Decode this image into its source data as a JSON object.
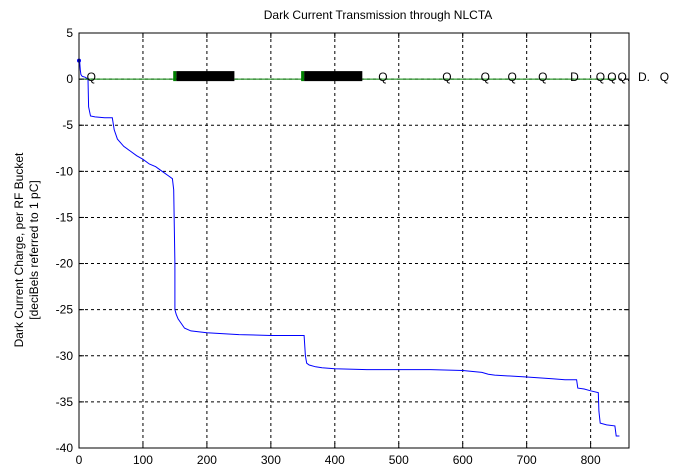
{
  "chart_data": {
    "type": "line",
    "title": "Dark Current Transmission through NLCTA",
    "xlabel": "",
    "ylabel_line1": "Dark Current Charge, per RF Bucket",
    "ylabel_line2": "[deciBels referred to 1 pC]",
    "xlim": [
      0,
      860
    ],
    "ylim": [
      -40,
      5
    ],
    "xticks": [
      0,
      100,
      200,
      300,
      400,
      500,
      600,
      700,
      800
    ],
    "yticks": [
      5,
      0,
      -5,
      -10,
      -15,
      -20,
      -25,
      -30,
      -35,
      -40
    ],
    "grid": true,
    "series": [
      {
        "color": "#0000ff",
        "points": [
          [
            0,
            2
          ],
          [
            1,
            2
          ],
          [
            2,
            1
          ],
          [
            3,
            0.5
          ],
          [
            5,
            0.3
          ],
          [
            10,
            0.2
          ],
          [
            14,
            0
          ],
          [
            15,
            -3
          ],
          [
            18,
            -4
          ],
          [
            25,
            -4.1
          ],
          [
            40,
            -4.2
          ],
          [
            52,
            -4.2
          ],
          [
            55,
            -5.5
          ],
          [
            60,
            -6.5
          ],
          [
            70,
            -7.3
          ],
          [
            80,
            -7.8
          ],
          [
            90,
            -8.3
          ],
          [
            100,
            -8.7
          ],
          [
            110,
            -9.2
          ],
          [
            120,
            -9.5
          ],
          [
            130,
            -10
          ],
          [
            140,
            -10.5
          ],
          [
            146,
            -10.8
          ],
          [
            148,
            -12
          ],
          [
            149,
            -16
          ],
          [
            150,
            -20
          ],
          [
            150,
            -25
          ],
          [
            152,
            -25.5
          ],
          [
            155,
            -26
          ],
          [
            160,
            -26.5
          ],
          [
            165,
            -27
          ],
          [
            175,
            -27.3
          ],
          [
            200,
            -27.5
          ],
          [
            250,
            -27.7
          ],
          [
            300,
            -27.8
          ],
          [
            352,
            -27.8
          ],
          [
            354,
            -30
          ],
          [
            356,
            -30.8
          ],
          [
            360,
            -31
          ],
          [
            370,
            -31.2
          ],
          [
            380,
            -31.3
          ],
          [
            400,
            -31.4
          ],
          [
            450,
            -31.5
          ],
          [
            500,
            -31.5
          ],
          [
            550,
            -31.5
          ],
          [
            600,
            -31.6
          ],
          [
            630,
            -31.8
          ],
          [
            640,
            -32
          ],
          [
            650,
            -32.1
          ],
          [
            700,
            -32.3
          ],
          [
            740,
            -32.5
          ],
          [
            760,
            -32.6
          ],
          [
            778,
            -32.6
          ],
          [
            780,
            -33.5
          ],
          [
            790,
            -33.6
          ],
          [
            800,
            -33.8
          ],
          [
            812,
            -34
          ],
          [
            813,
            -36
          ],
          [
            815,
            -37.3
          ],
          [
            825,
            -37.5
          ],
          [
            838,
            -37.6
          ],
          [
            840,
            -38.7
          ],
          [
            845,
            -38.7
          ]
        ]
      },
      {
        "color": "#008000",
        "points": [
          [
            0,
            0
          ],
          [
            840,
            0
          ]
        ]
      }
    ],
    "markers": {
      "color": "#008000",
      "dark_bands": [
        [
          152,
          243
        ],
        [
          352,
          443
        ]
      ],
      "symbols": [
        {
          "x": 12,
          "text": "Q"
        },
        {
          "x": 468,
          "text": "Q"
        },
        {
          "x": 568,
          "text": "Q"
        },
        {
          "x": 628,
          "text": "Q"
        },
        {
          "x": 670,
          "text": "Q"
        },
        {
          "x": 718,
          "text": "Q"
        },
        {
          "x": 768,
          "text": "D"
        },
        {
          "x": 808,
          "text": "Q"
        },
        {
          "x": 826,
          "text": "Q"
        },
        {
          "x": 842,
          "text": "Q."
        },
        {
          "x": 874,
          "text": "D."
        },
        {
          "x": 908,
          "text": "Q"
        }
      ]
    }
  }
}
